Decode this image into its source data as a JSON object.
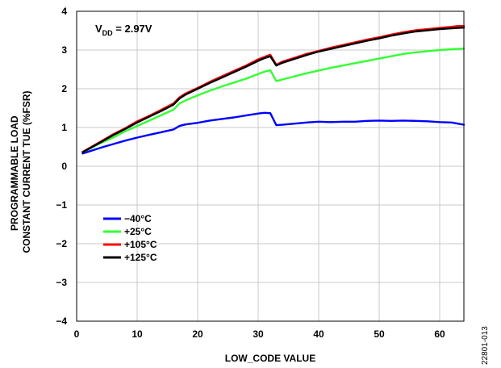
{
  "chart_data": {
    "type": "line",
    "xlabel": "LOW_CODE VALUE",
    "ylabel_lines": [
      "PROGRAMMABLE LOAD",
      "CONSTANT CURRENT TUE (%FSR)"
    ],
    "xlim": [
      0,
      64
    ],
    "ylim": [
      -4,
      4
    ],
    "x_ticks": [
      0,
      10,
      20,
      30,
      40,
      50,
      60
    ],
    "y_ticks": [
      -4,
      -3,
      -2,
      -1,
      0,
      1,
      2,
      3,
      4
    ],
    "x_tick_labels": [
      "0",
      "10",
      "20",
      "30",
      "40",
      "50",
      "60"
    ],
    "y_tick_labels": [
      "−4",
      "−3",
      "−2",
      "−1",
      "0",
      "1",
      "2",
      "3",
      "4"
    ],
    "grid": true,
    "legend_position": "lower-left",
    "annotation": {
      "main": "V",
      "sub": "DD",
      "rest": " = 2.97V"
    },
    "figure_id": "22801-013",
    "series": [
      {
        "name": "−40°C",
        "color": "#0000ff",
        "x": [
          1,
          2,
          4,
          6,
          8,
          10,
          12,
          14,
          16,
          17,
          18,
          20,
          22,
          24,
          26,
          28,
          30,
          31,
          32,
          33,
          34,
          36,
          38,
          40,
          42,
          44,
          46,
          48,
          50,
          52,
          54,
          56,
          58,
          60,
          62,
          63,
          64
        ],
        "values": [
          0.33,
          0.38,
          0.48,
          0.57,
          0.66,
          0.74,
          0.81,
          0.88,
          0.95,
          1.04,
          1.08,
          1.12,
          1.18,
          1.22,
          1.26,
          1.31,
          1.36,
          1.38,
          1.37,
          1.06,
          1.07,
          1.1,
          1.13,
          1.15,
          1.14,
          1.15,
          1.15,
          1.17,
          1.18,
          1.17,
          1.18,
          1.17,
          1.16,
          1.14,
          1.13,
          1.1,
          1.07
        ]
      },
      {
        "name": "+25°C",
        "color": "#33ff33",
        "x": [
          1,
          2,
          4,
          6,
          8,
          10,
          12,
          14,
          16,
          17,
          18,
          20,
          22,
          24,
          26,
          28,
          30,
          31,
          32,
          33,
          34,
          36,
          38,
          40,
          42,
          44,
          46,
          48,
          50,
          52,
          54,
          56,
          58,
          60,
          62,
          63,
          64
        ],
        "values": [
          0.36,
          0.44,
          0.6,
          0.74,
          0.9,
          1.04,
          1.18,
          1.32,
          1.46,
          1.62,
          1.7,
          1.83,
          1.95,
          2.06,
          2.16,
          2.26,
          2.38,
          2.44,
          2.48,
          2.2,
          2.24,
          2.32,
          2.4,
          2.47,
          2.54,
          2.6,
          2.66,
          2.72,
          2.78,
          2.84,
          2.9,
          2.94,
          2.97,
          3.0,
          3.02,
          3.03,
          3.04
        ]
      },
      {
        "name": "+105°C",
        "color": "#ff0000",
        "x": [
          1,
          2,
          4,
          6,
          8,
          10,
          12,
          14,
          16,
          17,
          18,
          20,
          22,
          24,
          26,
          28,
          30,
          31,
          32,
          33,
          34,
          36,
          38,
          40,
          42,
          44,
          46,
          48,
          50,
          52,
          54,
          56,
          58,
          60,
          62,
          63,
          64
        ],
        "values": [
          0.37,
          0.46,
          0.64,
          0.82,
          0.98,
          1.16,
          1.3,
          1.46,
          1.62,
          1.78,
          1.88,
          2.02,
          2.18,
          2.32,
          2.46,
          2.6,
          2.76,
          2.82,
          2.88,
          2.62,
          2.7,
          2.8,
          2.9,
          2.98,
          3.06,
          3.13,
          3.2,
          3.27,
          3.33,
          3.4,
          3.46,
          3.51,
          3.54,
          3.57,
          3.6,
          3.62,
          3.62
        ]
      },
      {
        "name": "+125°C",
        "color": "#000000",
        "x": [
          1,
          2,
          4,
          6,
          8,
          10,
          12,
          14,
          16,
          17,
          18,
          20,
          22,
          24,
          26,
          28,
          30,
          31,
          32,
          33,
          34,
          36,
          38,
          40,
          42,
          44,
          46,
          48,
          50,
          52,
          54,
          56,
          58,
          60,
          62,
          63,
          64
        ],
        "values": [
          0.36,
          0.45,
          0.62,
          0.8,
          0.96,
          1.13,
          1.28,
          1.43,
          1.59,
          1.75,
          1.85,
          2.0,
          2.15,
          2.29,
          2.43,
          2.57,
          2.72,
          2.79,
          2.84,
          2.6,
          2.67,
          2.77,
          2.87,
          2.96,
          3.03,
          3.1,
          3.17,
          3.24,
          3.3,
          3.37,
          3.43,
          3.48,
          3.51,
          3.54,
          3.56,
          3.57,
          3.58
        ]
      }
    ]
  }
}
